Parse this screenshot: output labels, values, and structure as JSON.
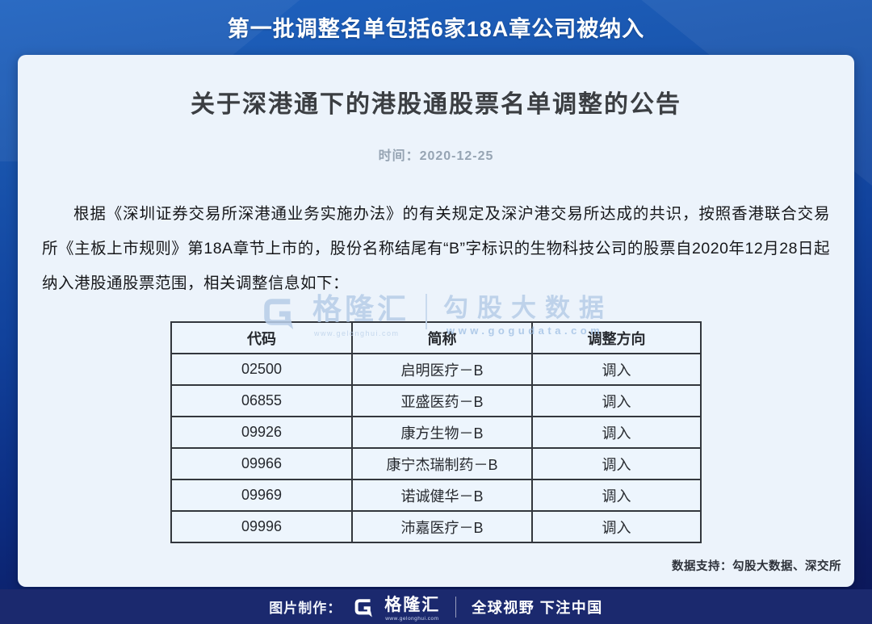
{
  "colors": {
    "banner_blue": "#1e62bd",
    "bottom_navy": "#0c1757",
    "footer_bar": "#1b296e",
    "card_bg": "#ecf3fb",
    "table_border": "#33373d",
    "watermark_blue": "#b7cde8"
  },
  "banner": {
    "title": "第一批调整名单包括6家18A章公司被纳入"
  },
  "card": {
    "title": "关于深港通下的港股通股票名单调整的公告",
    "date_line": "时间：2020-12-25",
    "body": "根据《深圳证券交易所深港通业务实施办法》的有关规定及深沪港交易所达成的共识，按照香港联合交易所《主板上市规则》第18A章节上市的，股份名称结尾有“B”字标识的生物科技公司的股票自2020年12月28日起纳入港股通股票范围，相关调整信息如下：",
    "data_support": "数据支持：勾股大数据、深交所"
  },
  "watermark": {
    "brand": "格隆汇",
    "brand_url": "www.gelonghui.com",
    "partner": "勾股大数据",
    "partner_url": "www.gogudata.com"
  },
  "table": {
    "columns": [
      "代码",
      "简称",
      "调整方向"
    ],
    "rows": [
      [
        "02500",
        "启明医疗－B",
        "调入"
      ],
      [
        "06855",
        "亚盛医药－B",
        "调入"
      ],
      [
        "09926",
        "康方生物－B",
        "调入"
      ],
      [
        "09966",
        "康宁杰瑞制药－B",
        "调入"
      ],
      [
        "09969",
        "诺诚健华－B",
        "调入"
      ],
      [
        "09996",
        "沛嘉医疗－B",
        "调入"
      ]
    ]
  },
  "footer": {
    "made_by_label": "图片制作：",
    "brand": "格隆汇",
    "brand_url": "www.gelonghui.com",
    "slogan": "全球视野 下注中国"
  }
}
